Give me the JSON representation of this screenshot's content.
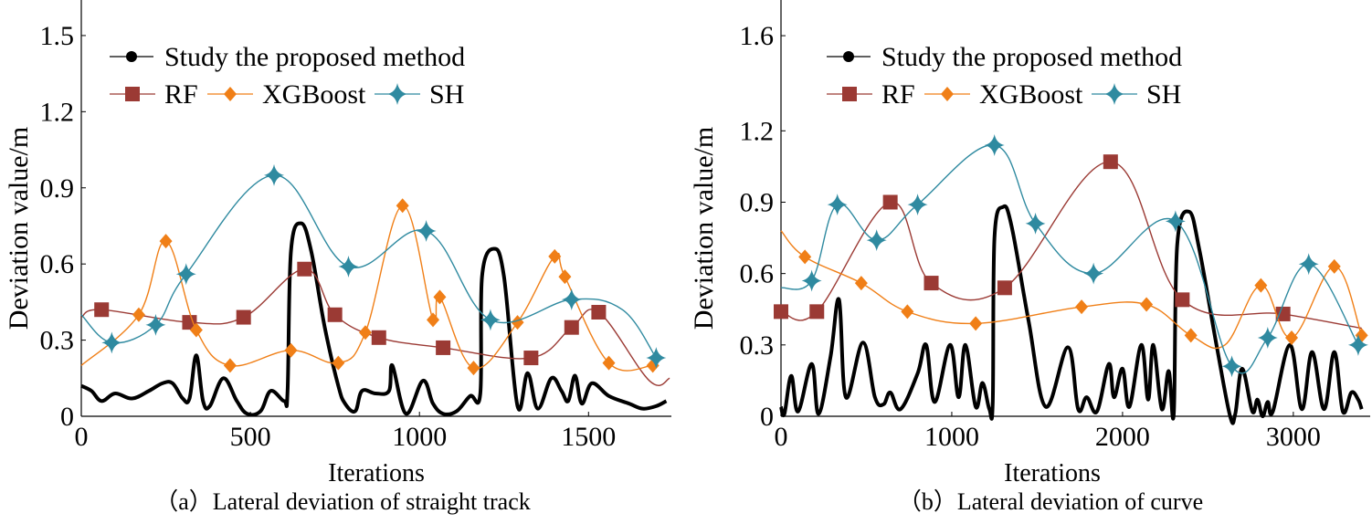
{
  "colors": {
    "proposed": "#000000",
    "rf": "#9b3a34",
    "xgboost": "#f07f17",
    "sh": "#2f8aa0"
  },
  "chart_data": [
    {
      "type": "line",
      "caption": "（a）Lateral deviation of straight track",
      "xlabel": "Iterations",
      "ylabel": "Deviation value/m",
      "xlim": [
        0,
        1745
      ],
      "ylim": [
        0,
        1.64
      ],
      "xticks": [
        0,
        500,
        1000,
        1500
      ],
      "yticks": [
        0,
        0.3,
        0.6,
        0.9,
        1.2,
        1.5
      ],
      "xtick_labels": [
        "0",
        "500",
        "1000",
        "1500"
      ],
      "ytick_labels": [
        "0",
        "0.3",
        "0.6",
        "0.9",
        "1.2",
        "1.5"
      ],
      "legend": {
        "placement": "top-left",
        "entries": [
          "Study the proposed method",
          "RF",
          "XGBoost",
          "SH"
        ]
      },
      "series": [
        {
          "name": "Study the proposed method",
          "key": "proposed",
          "markers": false,
          "points": [
            [
              0,
              0.12
            ],
            [
              30,
              0.1
            ],
            [
              60,
              0.06
            ],
            [
              100,
              0.09
            ],
            [
              150,
              0.07
            ],
            [
              200,
              0.1
            ],
            [
              240,
              0.13
            ],
            [
              270,
              0.13
            ],
            [
              300,
              0.07
            ],
            [
              320,
              0.07
            ],
            [
              340,
              0.24
            ],
            [
              360,
              0.06
            ],
            [
              380,
              0.04
            ],
            [
              420,
              0.15
            ],
            [
              460,
              0.06
            ],
            [
              490,
              0.01
            ],
            [
              530,
              0.02
            ],
            [
              560,
              0.1
            ],
            [
              600,
              0.06
            ],
            [
              610,
              0.1
            ],
            [
              620,
              0.65
            ],
            [
              650,
              0.76
            ],
            [
              680,
              0.65
            ],
            [
              720,
              0.35
            ],
            [
              760,
              0.12
            ],
            [
              780,
              0.05
            ],
            [
              810,
              0.02
            ],
            [
              830,
              0.1
            ],
            [
              870,
              0.09
            ],
            [
              910,
              0.1
            ],
            [
              920,
              0.2
            ],
            [
              960,
              0.01
            ],
            [
              1010,
              0.14
            ],
            [
              1040,
              0.05
            ],
            [
              1070,
              0.01
            ],
            [
              1110,
              0.02
            ],
            [
              1150,
              0.08
            ],
            [
              1180,
              0.09
            ],
            [
              1185,
              0.55
            ],
            [
              1220,
              0.66
            ],
            [
              1250,
              0.55
            ],
            [
              1290,
              0.04
            ],
            [
              1320,
              0.17
            ],
            [
              1350,
              0.03
            ],
            [
              1390,
              0.15
            ],
            [
              1420,
              0.1
            ],
            [
              1440,
              0.06
            ],
            [
              1460,
              0.16
            ],
            [
              1480,
              0.05
            ],
            [
              1510,
              0.13
            ],
            [
              1560,
              0.08
            ],
            [
              1620,
              0.05
            ],
            [
              1660,
              0.03
            ],
            [
              1700,
              0.04
            ],
            [
              1730,
              0.06
            ]
          ]
        },
        {
          "name": "RF",
          "key": "rf",
          "markers": true,
          "marker": "square",
          "points": [
            [
              0,
              0.39
            ],
            [
              60,
              0.42
            ],
            [
              320,
              0.37
            ],
            [
              480,
              0.39
            ],
            [
              660,
              0.58
            ],
            [
              750,
              0.4
            ],
            [
              880,
              0.31
            ],
            [
              1070,
              0.27
            ],
            [
              1330,
              0.23
            ],
            [
              1450,
              0.35
            ],
            [
              1530,
              0.41
            ],
            [
              1680,
              0.14
            ],
            [
              1740,
              0.15
            ]
          ],
          "marked": [
            1,
            2,
            3,
            4,
            5,
            6,
            7,
            8,
            9,
            10
          ]
        },
        {
          "name": "XGBoost",
          "key": "xgboost",
          "markers": true,
          "marker": "diamond",
          "points": [
            [
              0,
              0.2
            ],
            [
              170,
              0.4
            ],
            [
              250,
              0.69
            ],
            [
              340,
              0.34
            ],
            [
              440,
              0.2
            ],
            [
              620,
              0.26
            ],
            [
              760,
              0.21
            ],
            [
              840,
              0.33
            ],
            [
              950,
              0.83
            ],
            [
              1040,
              0.38
            ],
            [
              1060,
              0.47
            ],
            [
              1160,
              0.19
            ],
            [
              1290,
              0.37
            ],
            [
              1400,
              0.63
            ],
            [
              1430,
              0.55
            ],
            [
              1560,
              0.21
            ],
            [
              1690,
              0.2
            ]
          ],
          "marked": [
            1,
            2,
            3,
            4,
            5,
            6,
            7,
            8,
            9,
            10,
            11,
            12,
            13,
            14,
            15,
            16
          ]
        },
        {
          "name": "SH",
          "key": "sh",
          "markers": true,
          "marker": "star",
          "points": [
            [
              0,
              0.4
            ],
            [
              90,
              0.29
            ],
            [
              220,
              0.36
            ],
            [
              310,
              0.56
            ],
            [
              570,
              0.95
            ],
            [
              790,
              0.59
            ],
            [
              1020,
              0.73
            ],
            [
              1210,
              0.38
            ],
            [
              1450,
              0.46
            ],
            [
              1600,
              0.42
            ],
            [
              1700,
              0.23
            ]
          ],
          "marked": [
            1,
            2,
            3,
            4,
            5,
            6,
            7,
            8,
            10
          ]
        }
      ]
    },
    {
      "type": "line",
      "caption": "（b）Lateral deviation of curve",
      "xlabel": "Iterations",
      "ylabel": "Deviation value/m",
      "xlim": [
        0,
        3450
      ],
      "ylim": [
        0,
        1.75
      ],
      "xticks": [
        0,
        1000,
        2000,
        3000
      ],
      "yticks": [
        0,
        0.3,
        0.6,
        0.9,
        1.2,
        1.6
      ],
      "xtick_labels": [
        "0",
        "1000",
        "2000",
        "3000"
      ],
      "ytick_labels": [
        "0",
        "0.3",
        "0.6",
        "0.9",
        "1.2",
        "1.6"
      ],
      "legend": {
        "placement": "top-left",
        "entries": [
          "Study the proposed method",
          "RF",
          "XGBoost",
          "SH"
        ]
      },
      "series": [
        {
          "name": "Study the proposed method",
          "key": "proposed",
          "markers": false,
          "points": [
            [
              0,
              0.04
            ],
            [
              20,
              0.01
            ],
            [
              60,
              0.17
            ],
            [
              100,
              0.02
            ],
            [
              180,
              0.22
            ],
            [
              220,
              0.01
            ],
            [
              290,
              0.25
            ],
            [
              340,
              0.49
            ],
            [
              380,
              0.08
            ],
            [
              480,
              0.31
            ],
            [
              550,
              0.08
            ],
            [
              600,
              0.05
            ],
            [
              640,
              0.1
            ],
            [
              700,
              0.03
            ],
            [
              800,
              0.18
            ],
            [
              850,
              0.3
            ],
            [
              900,
              0.06
            ],
            [
              990,
              0.3
            ],
            [
              1040,
              0.08
            ],
            [
              1080,
              0.3
            ],
            [
              1140,
              0.04
            ],
            [
              1180,
              0.14
            ],
            [
              1220,
              0.03
            ],
            [
              1240,
              0.06
            ],
            [
              1250,
              0.75
            ],
            [
              1300,
              0.88
            ],
            [
              1350,
              0.8
            ],
            [
              1450,
              0.4
            ],
            [
              1550,
              0.04
            ],
            [
              1680,
              0.29
            ],
            [
              1740,
              0.03
            ],
            [
              1790,
              0.08
            ],
            [
              1850,
              0.02
            ],
            [
              1920,
              0.22
            ],
            [
              1950,
              0.08
            ],
            [
              2000,
              0.2
            ],
            [
              2040,
              0.04
            ],
            [
              2110,
              0.3
            ],
            [
              2150,
              0.07
            ],
            [
              2180,
              0.3
            ],
            [
              2230,
              0.03
            ],
            [
              2270,
              0.19
            ],
            [
              2300,
              0.01
            ],
            [
              2320,
              0.72
            ],
            [
              2390,
              0.86
            ],
            [
              2450,
              0.7
            ],
            [
              2550,
              0.3
            ],
            [
              2630,
              0.0
            ],
            [
              2660,
              0.01
            ],
            [
              2700,
              0.2
            ],
            [
              2760,
              0.02
            ],
            [
              2790,
              0.07
            ],
            [
              2820,
              0.0
            ],
            [
              2850,
              0.06
            ],
            [
              2880,
              0.02
            ],
            [
              2980,
              0.3
            ],
            [
              3050,
              0.03
            ],
            [
              3110,
              0.27
            ],
            [
              3180,
              0.03
            ],
            [
              3240,
              0.27
            ],
            [
              3290,
              0.02
            ],
            [
              3340,
              0.1
            ],
            [
              3380,
              0.07
            ],
            [
              3400,
              0.03
            ]
          ]
        },
        {
          "name": "RF",
          "key": "rf",
          "markers": true,
          "marker": "square",
          "points": [
            [
              0,
              0.44
            ],
            [
              210,
              0.44
            ],
            [
              640,
              0.9
            ],
            [
              880,
              0.56
            ],
            [
              1310,
              0.54
            ],
            [
              1930,
              1.07
            ],
            [
              2350,
              0.49
            ],
            [
              2940,
              0.43
            ],
            [
              3400,
              0.37
            ]
          ],
          "marked": [
            0,
            1,
            2,
            3,
            4,
            5,
            6,
            7
          ]
        },
        {
          "name": "XGBoost",
          "key": "xgboost",
          "markers": true,
          "marker": "diamond",
          "points": [
            [
              0,
              0.78
            ],
            [
              140,
              0.67
            ],
            [
              470,
              0.56
            ],
            [
              740,
              0.44
            ],
            [
              1140,
              0.39
            ],
            [
              1760,
              0.46
            ],
            [
              2140,
              0.47
            ],
            [
              2400,
              0.34
            ],
            [
              2600,
              0.3
            ],
            [
              2810,
              0.55
            ],
            [
              2990,
              0.33
            ],
            [
              3240,
              0.63
            ],
            [
              3400,
              0.34
            ]
          ],
          "marked": [
            1,
            2,
            3,
            4,
            5,
            6,
            7,
            9,
            10,
            11,
            12
          ]
        },
        {
          "name": "SH",
          "key": "sh",
          "markers": true,
          "marker": "star",
          "points": [
            [
              0,
              0.54
            ],
            [
              180,
              0.57
            ],
            [
              330,
              0.89
            ],
            [
              560,
              0.74
            ],
            [
              800,
              0.89
            ],
            [
              1250,
              1.14
            ],
            [
              1490,
              0.81
            ],
            [
              1830,
              0.6
            ],
            [
              2310,
              0.82
            ],
            [
              2640,
              0.21
            ],
            [
              2850,
              0.33
            ],
            [
              3090,
              0.64
            ],
            [
              3380,
              0.3
            ]
          ],
          "marked": [
            1,
            2,
            3,
            4,
            5,
            6,
            7,
            8,
            9,
            10,
            11,
            12
          ]
        }
      ]
    }
  ]
}
